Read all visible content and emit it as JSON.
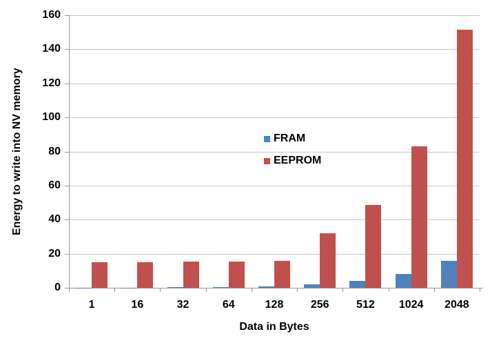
{
  "chart_data": {
    "type": "bar",
    "title": "",
    "xlabel": "Data in Bytes",
    "ylabel": "Energy to write into NV memory",
    "categories": [
      "1",
      "16",
      "32",
      "64",
      "128",
      "256",
      "512",
      "1024",
      "2048"
    ],
    "series": [
      {
        "name": "FRAM",
        "color": "#4F81BD",
        "values": [
          0.05,
          0.1,
          0.25,
          0.5,
          1,
          2,
          4,
          8,
          16
        ]
      },
      {
        "name": "EEPROM",
        "color": "#C0504D",
        "values": [
          15,
          15,
          15.5,
          15.5,
          16,
          32,
          48.5,
          83,
          151.5
        ]
      }
    ],
    "ylim": [
      0,
      160
    ],
    "yticks": [
      0,
      20,
      40,
      60,
      80,
      100,
      120,
      140,
      160
    ],
    "grid": true,
    "legend_position": "inside-center"
  },
  "colors": {
    "background": "#FFFFFF",
    "gridline": "#C6C6C6",
    "axis": "#969696",
    "text": "#000000",
    "fram": "#4F81BD",
    "eeprom": "#C0504D"
  }
}
